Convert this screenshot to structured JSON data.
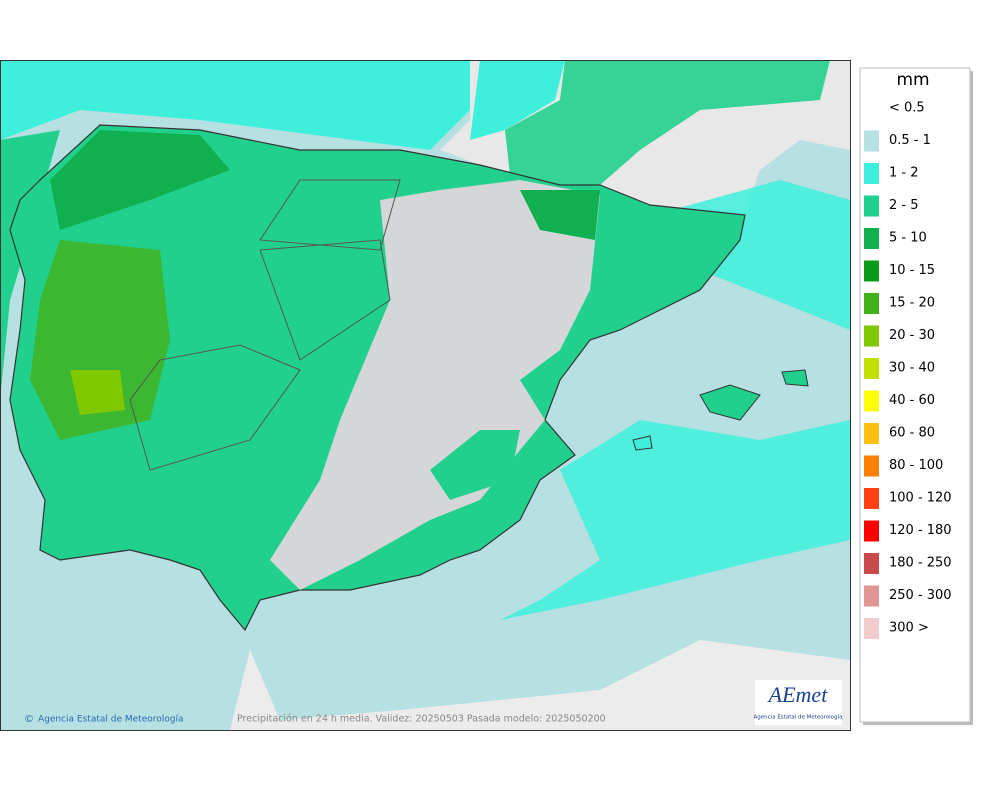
{
  "legend": {
    "title": "mm",
    "items": [
      {
        "label": "< 0.5",
        "color": null
      },
      {
        "label": "0.5 - 1",
        "color": "#b6e0e2"
      },
      {
        "label": "1 - 2",
        "color": "#3ef0dc"
      },
      {
        "label": "2 - 5",
        "color": "#22d08e"
      },
      {
        "label": "5 - 10",
        "color": "#10b050"
      },
      {
        "label": "10 - 15",
        "color": "#089a18"
      },
      {
        "label": "15 - 20",
        "color": "#42b01a"
      },
      {
        "label": "20 - 30",
        "color": "#80c800"
      },
      {
        "label": "30 - 40",
        "color": "#c2e000"
      },
      {
        "label": "40 - 60",
        "color": "#ffff00"
      },
      {
        "label": "60 - 80",
        "color": "#ffc010"
      },
      {
        "label": "80 - 100",
        "color": "#ff8000"
      },
      {
        "label": "100 - 120",
        "color": "#ff4010"
      },
      {
        "label": "120 - 180",
        "color": "#ff0000"
      },
      {
        "label": "180 - 250",
        "color": "#c84a4a"
      },
      {
        "label": "250 - 300",
        "color": "#e09494"
      },
      {
        "label": "300 >",
        "color": "#f2cccc"
      }
    ]
  },
  "footer": {
    "credit": "Agencia Estatal de Meteorología",
    "caption": "Precipitación en 24 h media. Validez: 20250503 Pasada modelo: 2025050200"
  },
  "logo": {
    "name": "AEmet",
    "subtitle": "Agencia Estatal de Meteorología"
  }
}
